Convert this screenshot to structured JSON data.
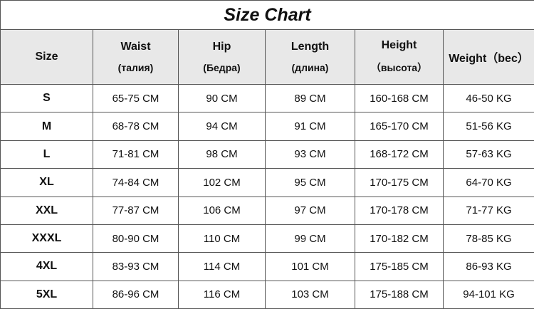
{
  "title": "Size Chart",
  "headers": [
    {
      "main": "Size",
      "sub": ""
    },
    {
      "main": "Waist",
      "sub": "(талия)"
    },
    {
      "main": "Hip",
      "sub": "(Бедра)"
    },
    {
      "main": "Length",
      "sub": "(длина)"
    },
    {
      "main": "Height",
      "sub": "（высота）"
    },
    {
      "main": "Weight（bec）",
      "sub": ""
    }
  ],
  "rows": [
    [
      "S",
      "65-75 CM",
      "90 CM",
      "89 CM",
      "160-168 CM",
      "46-50 KG"
    ],
    [
      "M",
      "68-78 CM",
      "94 CM",
      "91 CM",
      "165-170 CM",
      "51-56 KG"
    ],
    [
      "L",
      "71-81 CM",
      "98 CM",
      "93 CM",
      "168-172 CM",
      "57-63 KG"
    ],
    [
      "XL",
      "74-84 CM",
      "102 CM",
      "95 CM",
      "170-175 CM",
      "64-70 KG"
    ],
    [
      "XXL",
      "77-87 CM",
      "106 CM",
      "97 CM",
      "170-178 CM",
      "71-77 KG"
    ],
    [
      "XXXL",
      "80-90 CM",
      "110 CM",
      "99 CM",
      "170-182 CM",
      "78-85 KG"
    ],
    [
      "4XL",
      "83-93 CM",
      "114 CM",
      "101 CM",
      "175-185 CM",
      "86-93 KG"
    ],
    [
      "5XL",
      "86-96 CM",
      "116 CM",
      "103 CM",
      "175-188 CM",
      "94-101 KG"
    ]
  ]
}
